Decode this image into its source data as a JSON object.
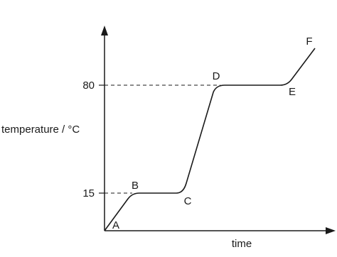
{
  "axes": {
    "y_label": "temperature / °C",
    "x_label": "time"
  },
  "y_marks": [
    80,
    15
  ],
  "points": [
    {
      "label": "A"
    },
    {
      "label": "B"
    },
    {
      "label": "C"
    },
    {
      "label": "D"
    },
    {
      "label": "E"
    },
    {
      "label": "F"
    }
  ]
}
